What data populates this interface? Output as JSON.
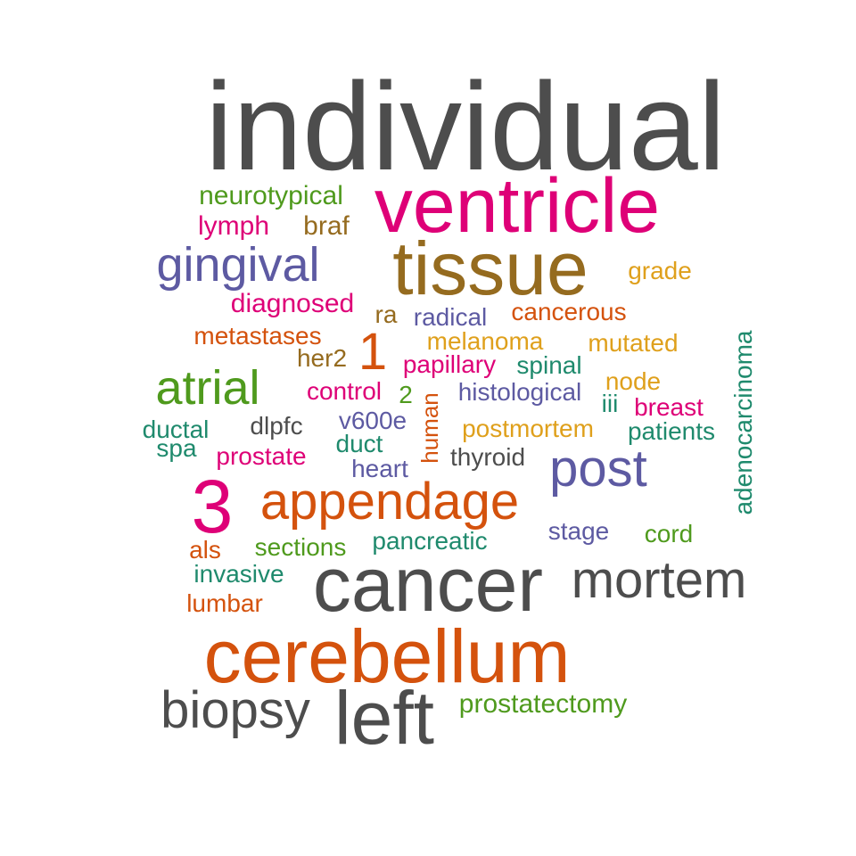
{
  "palette": {
    "dark_gray": "#4d4d4d",
    "magenta": "#de0077",
    "brown": "#956b1f",
    "purple": "#5d5aa2",
    "green": "#4f9a1d",
    "orange": "#d4520d",
    "teal": "#1f8a6d",
    "gold": "#dfa01c"
  },
  "words": [
    {
      "text": "individual",
      "color": "#4d4d4d"
    },
    {
      "text": "neurotypical",
      "color": "#4f9a1d"
    },
    {
      "text": "ventricle",
      "color": "#de0077"
    },
    {
      "text": "lymph",
      "color": "#de0077"
    },
    {
      "text": "braf",
      "color": "#956b1f"
    },
    {
      "text": "gingival",
      "color": "#5d5aa2"
    },
    {
      "text": "tissue",
      "color": "#956b1f"
    },
    {
      "text": "grade",
      "color": "#dfa01c"
    },
    {
      "text": "diagnosed",
      "color": "#de0077"
    },
    {
      "text": "ra",
      "color": "#956b1f"
    },
    {
      "text": "radical",
      "color": "#5d5aa2"
    },
    {
      "text": "cancerous",
      "color": "#d4520d"
    },
    {
      "text": "adenocarcinoma",
      "color": "#1f8a6d"
    },
    {
      "text": "metastases",
      "color": "#d4520d"
    },
    {
      "text": "1",
      "color": "#d4520d"
    },
    {
      "text": "melanoma",
      "color": "#dfa01c"
    },
    {
      "text": "mutated",
      "color": "#dfa01c"
    },
    {
      "text": "her2",
      "color": "#956b1f"
    },
    {
      "text": "papillary",
      "color": "#de0077"
    },
    {
      "text": "spinal",
      "color": "#1f8a6d"
    },
    {
      "text": "atrial",
      "color": "#4f9a1d"
    },
    {
      "text": "control",
      "color": "#de0077"
    },
    {
      "text": "2",
      "color": "#4f9a1d"
    },
    {
      "text": "human",
      "color": "#d4520d"
    },
    {
      "text": "histological",
      "color": "#5d5aa2"
    },
    {
      "text": "node",
      "color": "#dfa01c"
    },
    {
      "text": "iii",
      "color": "#1f8a6d"
    },
    {
      "text": "breast",
      "color": "#de0077"
    },
    {
      "text": "ductal",
      "color": "#1f8a6d"
    },
    {
      "text": "dlpfc",
      "color": "#4d4d4d"
    },
    {
      "text": "v600e",
      "color": "#5d5aa2"
    },
    {
      "text": "postmortem",
      "color": "#dfa01c"
    },
    {
      "text": "patients",
      "color": "#1f8a6d"
    },
    {
      "text": "spa",
      "color": "#1f8a6d"
    },
    {
      "text": "duct",
      "color": "#1f8a6d"
    },
    {
      "text": "prostate",
      "color": "#de0077"
    },
    {
      "text": "thyroid",
      "color": "#4d4d4d"
    },
    {
      "text": "heart",
      "color": "#5d5aa2"
    },
    {
      "text": "post",
      "color": "#5d5aa2"
    },
    {
      "text": "3",
      "color": "#de0077"
    },
    {
      "text": "appendage",
      "color": "#d4520d"
    },
    {
      "text": "stage",
      "color": "#5d5aa2"
    },
    {
      "text": "cord",
      "color": "#4f9a1d"
    },
    {
      "text": "als",
      "color": "#d4520d"
    },
    {
      "text": "sections",
      "color": "#4f9a1d"
    },
    {
      "text": "pancreatic",
      "color": "#1f8a6d"
    },
    {
      "text": "invasive",
      "color": "#1f8a6d"
    },
    {
      "text": "cancer",
      "color": "#4d4d4d"
    },
    {
      "text": "mortem",
      "color": "#4d4d4d"
    },
    {
      "text": "lumbar",
      "color": "#d4520d"
    },
    {
      "text": "cerebellum",
      "color": "#d4520d"
    },
    {
      "text": "biopsy",
      "color": "#4d4d4d"
    },
    {
      "text": "left",
      "color": "#4d4d4d"
    },
    {
      "text": "prostatectomy",
      "color": "#4f9a1d"
    }
  ]
}
